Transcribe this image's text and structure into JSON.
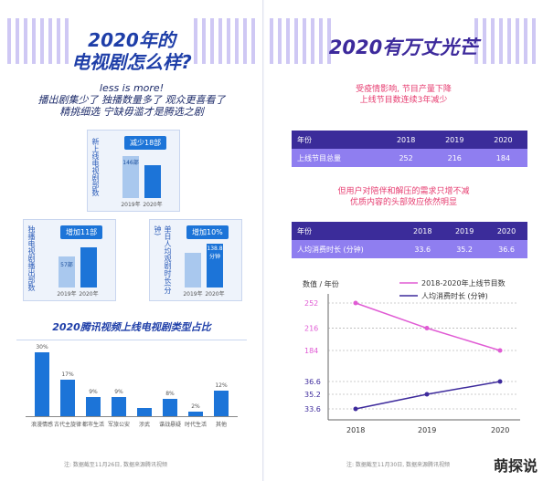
{
  "left": {
    "title_line1": "2020年的",
    "title_line2": "电视剧怎么样?",
    "tagline1": "less is more!",
    "tagline2": "播出剧集少了 独播数量多了 观众更喜看了",
    "tagline3": "精挑细选 宁缺毋滥才是腾选之剧",
    "card1": {
      "label": "新上线电视剧部数",
      "pill": "减少18部",
      "years": [
        "2019年",
        "2020年"
      ],
      "values": [
        "146部",
        ""
      ]
    },
    "card2": {
      "label": "独播电视剧播出部数",
      "pill": "增加11部",
      "years": [
        "2019年",
        "2020年"
      ],
      "values": [
        "57部",
        ""
      ]
    },
    "card3": {
      "label": "单日人均观剧时长(分钟)",
      "pill": "增加10%",
      "years": [
        "2019年",
        "2020年"
      ],
      "values": [
        "",
        "138.8分钟"
      ]
    },
    "sub_title": "2020腾讯视频上线电视剧类型占比",
    "type_chart": {
      "categories": [
        "浪漫情感",
        "古代主旋律",
        "都市生活",
        "军旅公安",
        "涉武",
        "谍战悬疑",
        "时代生活",
        "其他"
      ],
      "values": [
        "30%",
        "17%",
        "9%",
        "9%",
        "",
        "8%",
        "2%",
        "12%"
      ]
    },
    "note": "注: 数据截至11月26日, 数据来源腾讯视频"
  },
  "right": {
    "title": "2020有万丈光芒",
    "red1a": "受疫情影响, 节目产量下降",
    "red1b": "上线节目数连续3年减少",
    "table1": {
      "header": [
        "年份",
        "2018",
        "2019",
        "2020"
      ],
      "row": [
        "上线节目总量",
        "252",
        "216",
        "184"
      ]
    },
    "red2a": "但用户对陪伴和解压的需求只增不减",
    "red2b": "优质内容的头部效应依然明显",
    "table2": {
      "header": [
        "年份",
        "2018",
        "2019",
        "2020"
      ],
      "row": [
        "人均消费时长 (分钟)",
        "33.6",
        "35.2",
        "36.6"
      ]
    },
    "note": "注: 数据截至11月30日, 数据来源腾讯视频"
  },
  "watermark": "萌探说",
  "chart_data": {
    "type": "line",
    "ylabel": "数值 / 年份",
    "x": [
      "2018",
      "2019",
      "2020"
    ],
    "yticks": [
      "252",
      "216",
      "184",
      "36.6",
      "35.2",
      "33.6"
    ],
    "series": [
      {
        "name": "2018-2020年上线节目数",
        "values": [
          252,
          216,
          184
        ],
        "color": "#e05bd4"
      },
      {
        "name": "人均消费时长 (分钟)",
        "values": [
          33.6,
          35.2,
          36.6
        ],
        "color": "#3d2a9c"
      }
    ]
  }
}
